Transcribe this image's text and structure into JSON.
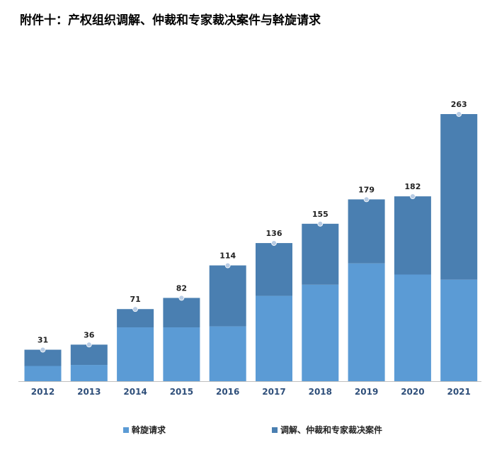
{
  "chart_data": {
    "type": "bar",
    "stacked": true,
    "title": "附件十：产权组织调解、仲裁和专家裁决案件与斡旋请求",
    "categories": [
      "2012",
      "2013",
      "2014",
      "2015",
      "2016",
      "2017",
      "2018",
      "2019",
      "2020",
      "2021"
    ],
    "series": [
      {
        "name": "斡旋请求",
        "color": "#5b9bd5",
        "values": [
          15,
          16,
          53,
          53,
          54,
          84,
          95,
          116,
          105,
          100
        ]
      },
      {
        "name": "调解、仲裁和专家裁决案件",
        "color": "#4a7fb1",
        "values": [
          16,
          20,
          18,
          29,
          60,
          52,
          60,
          63,
          77,
          163
        ]
      }
    ],
    "totals": [
      31,
      36,
      71,
      82,
      114,
      136,
      155,
      179,
      182,
      263
    ],
    "ylim": [
      0,
      263
    ],
    "grid": false,
    "legend_position": "bottom"
  }
}
